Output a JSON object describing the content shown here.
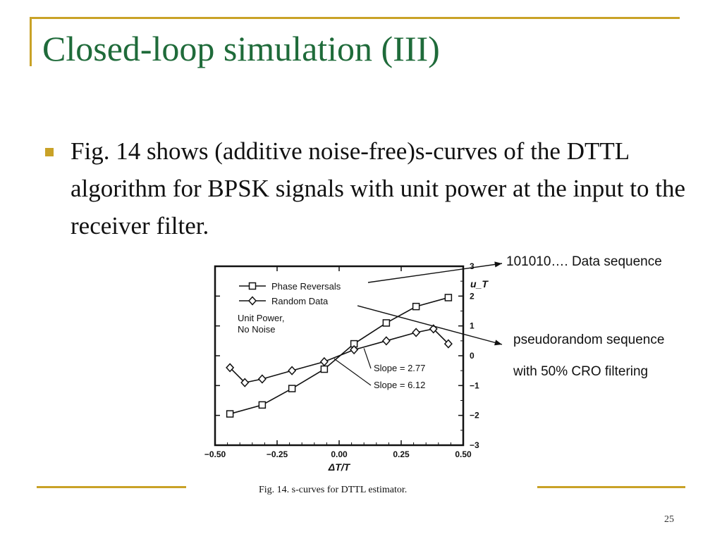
{
  "slide": {
    "title": "Closed-loop simulation (III)",
    "bullet": "Fig. 14 shows (additive noise-free)s-curves of the DTTL algorithm for BPSK signals with unit power at the input to the receiver filter.",
    "page_number": "25",
    "accent_color": "#c9a227",
    "title_color": "#1f6b3a"
  },
  "annotations": {
    "data_sequence": "101010…. Data sequence",
    "pseudorandom_line1": "pseudorandom sequence",
    "pseudorandom_line2": "with 50% CRO filtering"
  },
  "chart_data": {
    "type": "line",
    "title": "",
    "caption": "Fig. 14.    s-curves for DTTL estimator.",
    "xlabel": "ΔT/T",
    "ylabel": "u_T",
    "xlim": [
      -0.5,
      0.5
    ],
    "ylim": [
      -3,
      3
    ],
    "x_ticks": [
      "−0.50",
      "−0.25",
      "0.00",
      "0.25",
      "0.50"
    ],
    "x_tick_values": [
      -0.5,
      -0.25,
      0,
      0.25,
      0.5
    ],
    "y_ticks": [
      "−3",
      "−2",
      "−1",
      "0",
      "1",
      "2",
      "3"
    ],
    "y_tick_values": [
      -3,
      -2,
      -1,
      0,
      1,
      2,
      3
    ],
    "legend_position": "top-left",
    "note_lines": [
      "Unit Power,",
      "No Noise"
    ],
    "series": [
      {
        "name": "Phase Reversals",
        "marker": "square",
        "x": [
          -0.44,
          -0.31,
          -0.19,
          -0.06,
          0.06,
          0.19,
          0.31,
          0.44
        ],
        "y": [
          -1.95,
          -1.65,
          -1.1,
          -0.45,
          0.4,
          1.1,
          1.65,
          1.95
        ]
      },
      {
        "name": "Random Data",
        "marker": "diamond",
        "x": [
          -0.44,
          -0.38,
          -0.31,
          -0.19,
          -0.06,
          0.06,
          0.19,
          0.31,
          0.38,
          0.44
        ],
        "y": [
          -0.4,
          -0.9,
          -0.78,
          -0.5,
          -0.2,
          0.2,
          0.5,
          0.78,
          0.9,
          0.4
        ]
      }
    ],
    "slope_labels": [
      "Slope  =  2.77",
      "Slope  =  6.12"
    ]
  }
}
